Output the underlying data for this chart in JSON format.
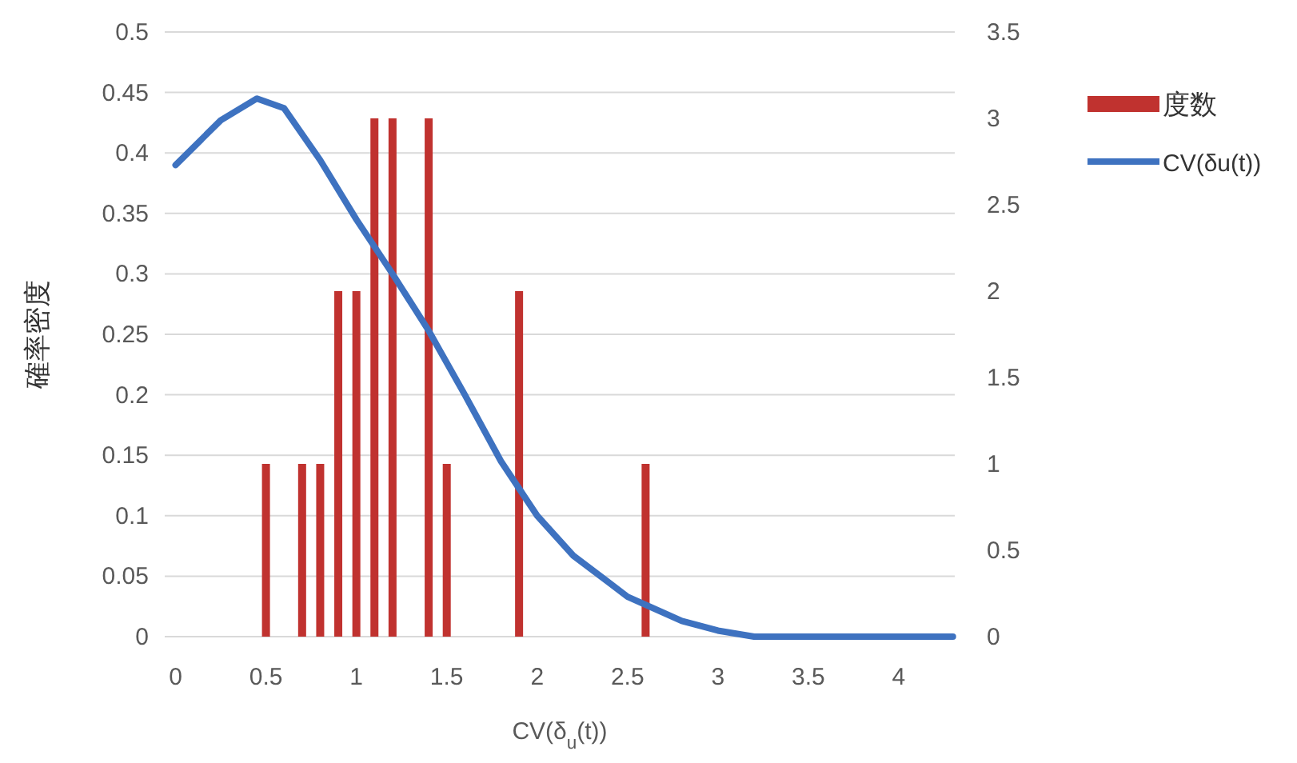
{
  "chart_data": {
    "type": "bar",
    "xlabel": "CV(δ$_{u}$(t))",
    "ylabel": "確率密度",
    "xlim": [
      -0.06,
      4.31
    ],
    "xticks": [
      0,
      0.5,
      1,
      1.5,
      2,
      2.5,
      3,
      3.5,
      4
    ],
    "ylim": [
      0,
      0.5
    ],
    "yticks": [
      0,
      0.05,
      0.1,
      0.15,
      0.2,
      0.25,
      0.3,
      0.35,
      0.4,
      0.45,
      0.5
    ],
    "y2lim": [
      0,
      3.5
    ],
    "y2ticks": [
      0,
      0.5,
      1,
      1.5,
      2,
      2.5,
      3,
      3.5
    ],
    "grid": "y",
    "legend": "right",
    "series": [
      {
        "name": "度数",
        "axis": "y2",
        "color": "#c0322f",
        "x": [
          0.5,
          0.7,
          0.8,
          0.9,
          1.0,
          1.1,
          1.2,
          1.4,
          1.5,
          1.9,
          2.6
        ],
        "values": [
          1,
          1,
          1,
          2,
          2,
          3,
          3,
          3,
          1,
          2,
          1
        ]
      },
      {
        "name": "CV(δu(t))",
        "type": "line",
        "color": "#3e72c0",
        "x": [
          0,
          0.25,
          0.45,
          0.6,
          0.8,
          1.0,
          1.2,
          1.4,
          1.6,
          1.8,
          2.0,
          2.2,
          2.5,
          2.8,
          3.0,
          3.2,
          4.3
        ],
        "values": [
          0.39,
          0.427,
          0.445,
          0.437,
          0.394,
          0.345,
          0.3,
          0.253,
          0.2,
          0.145,
          0.1,
          0.067,
          0.033,
          0.013,
          0.005,
          0,
          0
        ]
      }
    ]
  }
}
